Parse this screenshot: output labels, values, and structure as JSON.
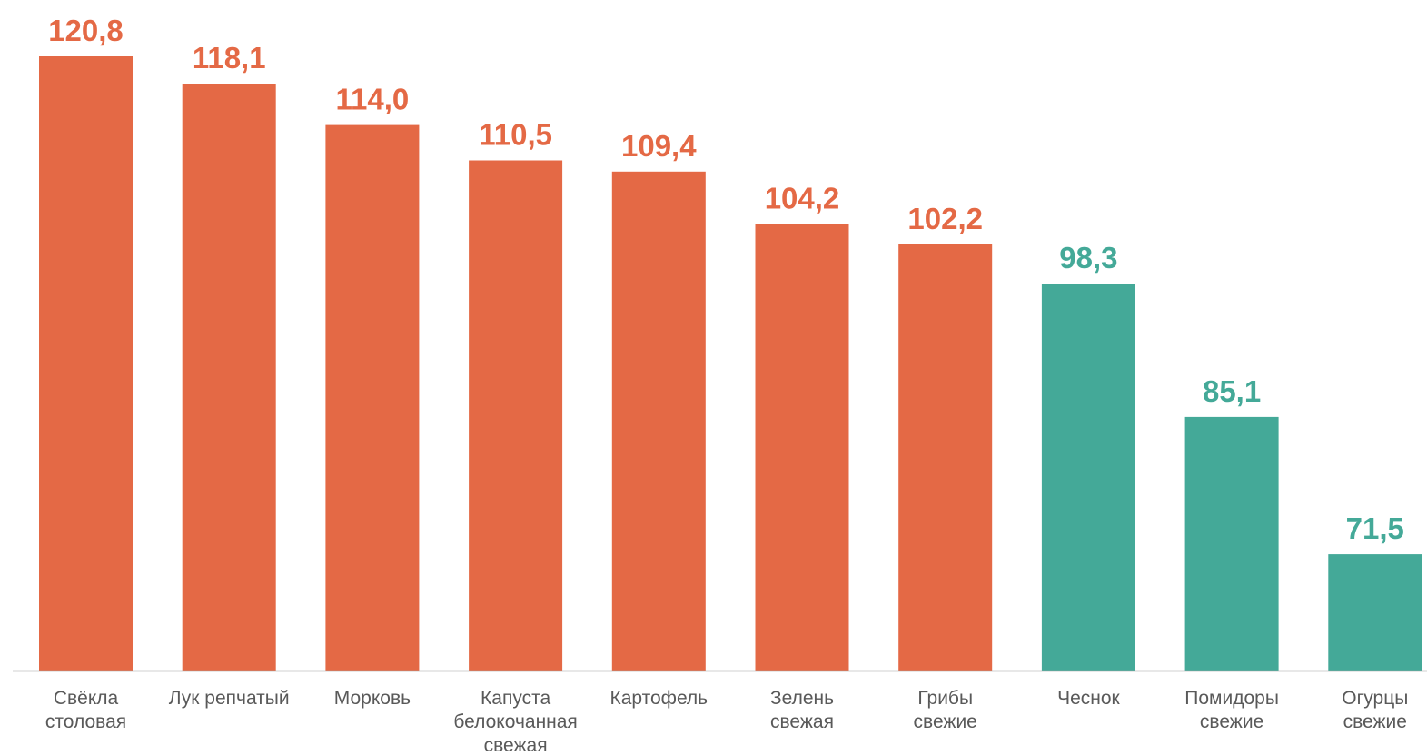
{
  "chart_data": {
    "type": "bar",
    "categories": [
      [
        "Свёкла",
        "столовая"
      ],
      [
        "Лук репчатый"
      ],
      [
        "Морковь"
      ],
      [
        "Капуста",
        "белокочанная",
        "свежая"
      ],
      [
        "Картофель"
      ],
      [
        "Зелень",
        "свежая"
      ],
      [
        "Грибы",
        "свежие"
      ],
      [
        "Чеснок"
      ],
      [
        "Помидоры",
        "свежие"
      ],
      [
        "Огурцы",
        "свежие"
      ]
    ],
    "values": [
      120.8,
      118.1,
      114.0,
      110.5,
      109.4,
      104.2,
      102.2,
      98.3,
      85.1,
      71.5
    ],
    "value_labels": [
      "120,8",
      "118,1",
      "114,0",
      "110,5",
      "109,4",
      "104,2",
      "102,2",
      "98,3",
      "85,1",
      "71,5"
    ],
    "ylim": [
      60,
      122
    ],
    "colors": {
      "above_100": "#E46945",
      "below_100": "#44A998",
      "axis": "#A6A6A6"
    },
    "title": "",
    "xlabel": "",
    "ylabel": "",
    "grid": false,
    "legend": "none"
  }
}
